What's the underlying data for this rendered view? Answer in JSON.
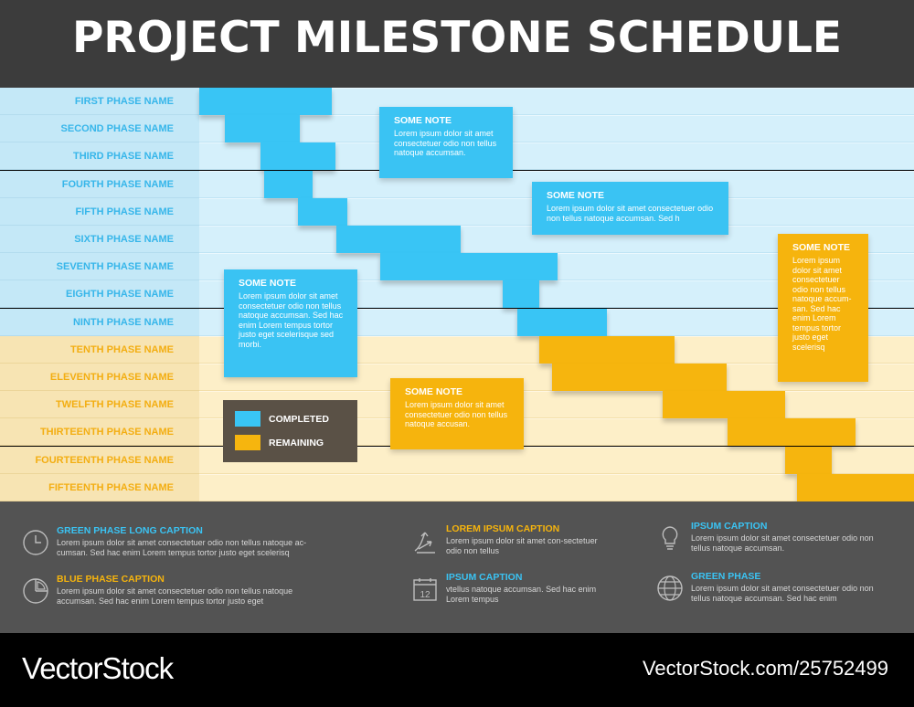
{
  "header": {
    "title": "PROJECT MILESTONE SCHEDULE"
  },
  "chart_data": {
    "type": "gantt",
    "title": "PROJECT MILESTONE SCHEDULE",
    "phases": [
      {
        "name": "FIRST PHASE NAME",
        "status": "completed",
        "start": 0,
        "end": 145
      },
      {
        "name": "SECOND PHASE NAME",
        "status": "completed",
        "start": 28,
        "end": 110
      },
      {
        "name": "THIRD PHASE NAME",
        "status": "completed",
        "start": 67,
        "end": 149
      },
      {
        "name": "FOURTH PHASE NAME",
        "status": "completed",
        "start": 71,
        "end": 124
      },
      {
        "name": "FIFTH PHASE NAME",
        "status": "completed",
        "start": 108,
        "end": 162
      },
      {
        "name": "SIXTH PHASE NAME",
        "status": "completed",
        "start": 150,
        "end": 286
      },
      {
        "name": "SEVENTH PHASE NAME",
        "status": "completed",
        "start": 198,
        "end": 392
      },
      {
        "name": "EIGHTH PHASE NAME",
        "status": "completed",
        "start": 332,
        "end": 372
      },
      {
        "name": "NINTH PHASE NAME",
        "status": "completed",
        "start": 348,
        "end": 446
      },
      {
        "name": "TENTH PHASE NAME",
        "status": "remaining",
        "start": 372,
        "end": 520
      },
      {
        "name": "ELEVENTH PHASE NAME",
        "status": "remaining",
        "start": 386,
        "end": 577
      },
      {
        "name": "TWELFTH PHASE NAME",
        "status": "remaining",
        "start": 507,
        "end": 641
      },
      {
        "name": "THIRTEENTH PHASE NAME",
        "status": "remaining",
        "start": 578,
        "end": 718
      },
      {
        "name": "FOURTEENTH PHASE NAME",
        "status": "remaining",
        "start": 641,
        "end": 692
      },
      {
        "name": "FIFTEENTH PHASE NAME",
        "status": "remaining",
        "start": 654,
        "end": 782
      }
    ],
    "x_range": [
      0,
      782
    ],
    "legend": [
      {
        "label": "COMPLETED",
        "color": "#39c5f5"
      },
      {
        "label": "REMAINING",
        "color": "#f6b50e"
      }
    ],
    "legend_position": "bottom-left",
    "notes": [
      {
        "title": "SOME NOTE",
        "text": "Lorem ipsum dolor sit amet consectetuer odio non tellus natoque accumsan.",
        "color": "blue"
      },
      {
        "title": "SOME NOTE",
        "text": "Lorem ipsum dolor sit amet consectetuer odio non tellus natoque accumsan. Sed h",
        "color": "blue"
      },
      {
        "title": "SOME NOTE",
        "text": "Lorem ipsum dolor sit amet consectetuer odio non tellus natoque accumsan. Sed hac enim Lorem tempus tortor justo eget scelerisque sed morbi.",
        "color": "blue"
      },
      {
        "title": "SOME NOTE",
        "text": "Lorem ipsum dolor sit amet consectetuer odio non tellus natoque accusan.",
        "color": "orange"
      },
      {
        "title": "SOME NOTE",
        "text": "Lorem ipsum dolor sit amet consectetuer odio non tellus natoque accum-san. Sed hac enim Lorem tempus tortor justo eget scelerisq",
        "color": "orange"
      }
    ]
  },
  "footer": {
    "captions": [
      {
        "title": "GREEN PHASE LONG CAPTION",
        "text": "Lorem ipsum dolor sit amet consectetuer odio non tellus natoque ac-cumsan. Sed hac enim Lorem tempus tortor justo eget scelerisq",
        "color": "#3ac3f3",
        "icon": "clock-icon"
      },
      {
        "title": "BLUE PHASE CAPTION",
        "text": "Lorem ipsum dolor sit amet consectetuer odio non tellus natoque accumsan. Sed hac enim Lorem tempus tortor justo eget",
        "color": "#f6b40d",
        "icon": "pie-chart-icon"
      },
      {
        "title": "LOREM IPSUM CAPTION",
        "text": "Lorem ipsum dolor sit amet con-sectetuer odio non tellus",
        "color": "#f6b40d",
        "icon": "arrows-icon"
      },
      {
        "title": "IPSUM CAPTION",
        "text": "vtellus natoque accumsan. Sed hac enim Lorem tempus",
        "color": "#3ac3f3",
        "icon": "calendar-icon",
        "icon_number": "12"
      },
      {
        "title": "IPSUM CAPTION",
        "text": "Lorem ipsum dolor sit amet consectetuer odio non tellus natoque accumsan.",
        "color": "#3ac3f3",
        "icon": "lightbulb-icon"
      },
      {
        "title": "GREEN PHASE",
        "text": "Lorem ipsum dolor sit amet consectetuer odio non tellus natoque accumsan. Sed hac enim",
        "color": "#3ac3f3",
        "icon": "globe-icon"
      }
    ]
  },
  "branding": {
    "logo": "VectorStock",
    "id": "VectorStock.com/25752499"
  }
}
